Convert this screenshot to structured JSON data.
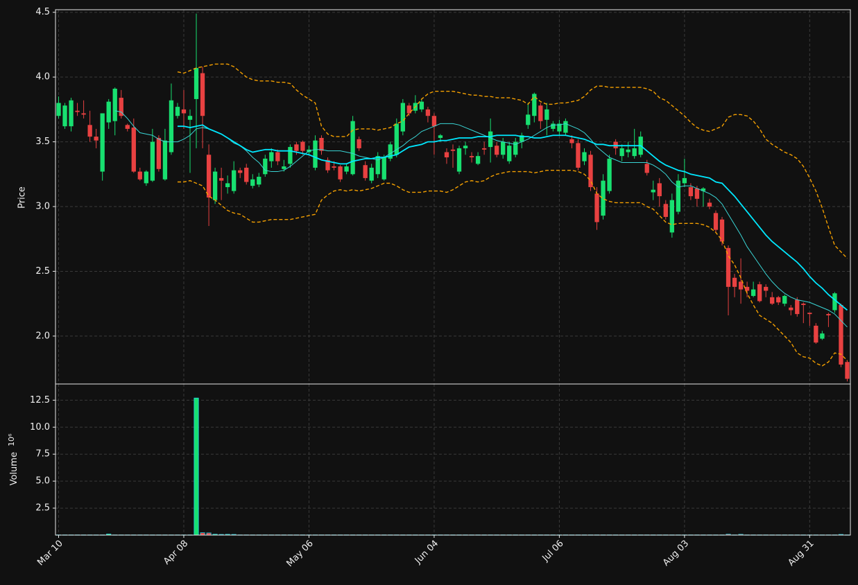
{
  "chart_data": {
    "type": "candlestick",
    "y_label": "Price",
    "volume_label": "Volume",
    "volume_scale_label": "10⁶",
    "up_color": "#18e070",
    "down_color": "#e84141",
    "volume_edge_color": "#22d3e6",
    "grid": true,
    "categories": [
      "Mar 10",
      null,
      null,
      null,
      null,
      null,
      null,
      null,
      null,
      null,
      null,
      null,
      null,
      null,
      null,
      null,
      null,
      null,
      null,
      null,
      "Apr 08",
      null,
      null,
      null,
      null,
      null,
      null,
      null,
      null,
      null,
      null,
      null,
      null,
      null,
      null,
      null,
      null,
      null,
      null,
      null,
      "May 06",
      null,
      null,
      null,
      null,
      null,
      null,
      null,
      null,
      null,
      null,
      null,
      null,
      null,
      null,
      null,
      null,
      null,
      null,
      null,
      "Jun 04",
      null,
      null,
      null,
      null,
      null,
      null,
      null,
      null,
      null,
      null,
      null,
      null,
      null,
      null,
      null,
      null,
      null,
      null,
      null,
      "Jul 06",
      null,
      null,
      null,
      null,
      null,
      null,
      null,
      null,
      null,
      null,
      null,
      null,
      null,
      null,
      null,
      null,
      null,
      null,
      null,
      "Aug 03",
      null,
      null,
      null,
      null,
      null,
      null,
      null,
      null,
      null,
      null,
      null,
      null,
      null,
      null,
      null,
      null,
      null,
      null,
      null,
      "Aug 31",
      null,
      null,
      null,
      null,
      null,
      null
    ],
    "open": [
      3.7,
      3.62,
      3.62,
      3.74,
      3.72,
      3.63,
      3.54,
      3.27,
      3.65,
      3.66,
      3.84,
      3.63,
      3.61,
      3.27,
      3.18,
      3.2,
      3.53,
      3.21,
      3.42,
      3.7,
      3.75,
      3.67,
      3.83,
      4.03,
      3.4,
      3.05,
      3.22,
      3.15,
      3.12,
      3.28,
      3.3,
      3.16,
      3.17,
      3.25,
      3.35,
      3.42,
      3.29,
      3.33,
      3.48,
      3.5,
      3.42,
      3.3,
      3.53,
      3.36,
      3.31,
      3.31,
      3.27,
      3.25,
      3.52,
      3.32,
      3.2,
      3.25,
      3.21,
      3.37,
      3.4,
      3.58,
      3.78,
      3.74,
      3.75,
      3.75,
      3.7,
      3.53,
      3.42,
      3.44,
      3.27,
      3.45,
      3.39,
      3.33,
      3.45,
      3.46,
      3.47,
      3.4,
      3.35,
      3.4,
      3.5,
      3.63,
      3.7,
      3.78,
      3.67,
      3.6,
      3.58,
      3.57,
      3.52,
      3.49,
      3.35,
      3.4,
      3.1,
      2.93,
      3.12,
      3.5,
      3.39,
      3.42,
      3.39,
      3.4,
      3.33,
      3.11,
      3.18,
      3.02,
      2.8,
      2.96,
      3.18,
      3.15,
      3.14,
      3.12,
      3.03,
      2.95,
      2.9,
      2.68,
      2.45,
      2.42,
      2.38,
      2.31,
      2.4,
      2.38,
      2.3,
      2.3,
      2.25,
      2.22,
      2.28,
      2.25,
      2.18,
      2.08,
      1.98,
      2.17,
      2.2,
      2.24,
      1.8
    ],
    "high": [
      3.85,
      3.8,
      3.84,
      3.8,
      3.82,
      3.74,
      3.6,
      3.72,
      3.83,
      3.92,
      3.9,
      3.64,
      3.68,
      3.3,
      3.28,
      3.6,
      3.55,
      3.6,
      3.95,
      3.8,
      3.9,
      3.75,
      4.49,
      4.08,
      3.48,
      3.3,
      3.3,
      3.24,
      3.35,
      3.3,
      3.33,
      3.25,
      3.26,
      3.4,
      3.45,
      3.44,
      3.36,
      3.48,
      3.5,
      3.51,
      3.47,
      3.55,
      3.55,
      3.38,
      3.35,
      3.32,
      3.33,
      3.7,
      3.54,
      3.35,
      3.33,
      3.42,
      3.4,
      3.5,
      3.68,
      3.83,
      3.8,
      3.86,
      3.83,
      3.77,
      3.72,
      3.56,
      3.45,
      3.48,
      3.47,
      3.5,
      3.42,
      3.42,
      3.5,
      3.68,
      3.5,
      3.53,
      3.5,
      3.53,
      3.57,
      3.8,
      3.88,
      3.8,
      3.8,
      3.66,
      3.67,
      3.68,
      3.55,
      3.52,
      3.45,
      3.43,
      3.15,
      3.25,
      3.4,
      3.52,
      3.48,
      3.5,
      3.6,
      3.58,
      3.36,
      3.2,
      3.22,
      3.05,
      3.1,
      3.25,
      3.37,
      3.18,
      3.16,
      3.15,
      3.06,
      2.97,
      2.92,
      2.7,
      2.48,
      2.6,
      2.42,
      2.42,
      2.42,
      2.4,
      2.34,
      2.31,
      2.32,
      2.24,
      2.3,
      2.26,
      2.18,
      2.1,
      2.04,
      2.18,
      2.34,
      2.25,
      1.81
    ],
    "low": [
      3.68,
      3.6,
      3.58,
      3.7,
      3.68,
      3.5,
      3.45,
      3.2,
      3.6,
      3.55,
      3.68,
      3.58,
      3.26,
      3.2,
      3.16,
      3.19,
      3.27,
      3.2,
      3.4,
      3.68,
      3.6,
      3.26,
      3.45,
      3.45,
      2.85,
      3.02,
      3.05,
      3.1,
      3.1,
      3.22,
      3.17,
      3.14,
      3.15,
      3.23,
      3.3,
      3.32,
      3.27,
      3.3,
      3.4,
      3.4,
      3.4,
      3.28,
      3.4,
      3.26,
      3.28,
      3.19,
      3.25,
      3.24,
      3.43,
      3.2,
      3.18,
      3.22,
      3.2,
      3.35,
      3.38,
      3.55,
      3.7,
      3.72,
      3.73,
      3.65,
      3.4,
      3.5,
      3.33,
      3.3,
      3.25,
      3.4,
      3.34,
      3.32,
      3.4,
      3.34,
      3.38,
      3.37,
      3.33,
      3.38,
      3.45,
      3.6,
      3.65,
      3.6,
      3.55,
      3.58,
      3.55,
      3.55,
      3.45,
      3.28,
      3.32,
      3.12,
      2.82,
      2.9,
      3.1,
      3.4,
      3.35,
      3.38,
      3.37,
      3.38,
      3.24,
      3.05,
      3.0,
      2.9,
      2.76,
      2.94,
      3.15,
      3.05,
      3.0,
      3.0,
      2.98,
      2.8,
      2.7,
      2.16,
      2.3,
      2.25,
      2.3,
      2.3,
      2.26,
      2.3,
      2.24,
      2.24,
      2.23,
      2.16,
      2.15,
      2.1,
      2.08,
      1.94,
      1.97,
      2.07,
      2.18,
      1.76,
      1.65
    ],
    "close": [
      3.8,
      3.78,
      3.82,
      3.73,
      3.71,
      3.54,
      3.51,
      3.72,
      3.81,
      3.91,
      3.7,
      3.6,
      3.27,
      3.21,
      3.27,
      3.5,
      3.29,
      3.51,
      3.82,
      3.77,
      3.72,
      3.7,
      4.07,
      3.7,
      3.07,
      3.27,
      3.2,
      3.18,
      3.28,
      3.26,
      3.19,
      3.21,
      3.23,
      3.37,
      3.42,
      3.35,
      3.31,
      3.46,
      3.43,
      3.43,
      3.44,
      3.51,
      3.43,
      3.28,
      3.3,
      3.21,
      3.31,
      3.66,
      3.45,
      3.22,
      3.3,
      3.39,
      3.38,
      3.48,
      3.64,
      3.8,
      3.72,
      3.8,
      3.81,
      3.7,
      3.62,
      3.55,
      3.38,
      3.43,
      3.45,
      3.47,
      3.38,
      3.39,
      3.44,
      3.58,
      3.4,
      3.5,
      3.47,
      3.5,
      3.55,
      3.71,
      3.87,
      3.66,
      3.75,
      3.64,
      3.64,
      3.66,
      3.49,
      3.3,
      3.42,
      3.15,
      2.88,
      3.2,
      3.37,
      3.45,
      3.45,
      3.44,
      3.45,
      3.54,
      3.26,
      3.13,
      3.08,
      2.92,
      3.05,
      3.2,
      3.22,
      3.08,
      3.06,
      3.14,
      3.0,
      2.82,
      2.73,
      2.38,
      2.38,
      2.36,
      2.35,
      2.36,
      2.27,
      2.35,
      2.25,
      2.26,
      2.31,
      2.2,
      2.17,
      2.24,
      2.17,
      1.95,
      2.02,
      2.16,
      2.33,
      1.78,
      1.67
    ],
    "volume": [
      0.02,
      0.02,
      0.02,
      0.02,
      0.02,
      0.02,
      0.02,
      0.02,
      0.1,
      0.02,
      0.02,
      0.02,
      0.02,
      0.02,
      0.02,
      0.02,
      0.02,
      0.02,
      0.02,
      0.02,
      0.02,
      0.02,
      12.7,
      0.22,
      0.2,
      0.08,
      0.06,
      0.07,
      0.06,
      0.02,
      0.02,
      0.02,
      0.02,
      0.02,
      0.02,
      0.02,
      0.02,
      0.02,
      0.02,
      0.02,
      0.02,
      0.02,
      0.02,
      0.02,
      0.02,
      0.02,
      0.02,
      0.02,
      0.02,
      0.02,
      0.02,
      0.02,
      0.02,
      0.02,
      0.02,
      0.02,
      0.02,
      0.02,
      0.02,
      0.02,
      0.02,
      0.02,
      0.02,
      0.02,
      0.02,
      0.02,
      0.02,
      0.02,
      0.02,
      0.02,
      0.02,
      0.02,
      0.02,
      0.02,
      0.02,
      0.02,
      0.02,
      0.02,
      0.02,
      0.02,
      0.02,
      0.02,
      0.02,
      0.02,
      0.02,
      0.02,
      0.02,
      0.02,
      0.02,
      0.02,
      0.02,
      0.02,
      0.02,
      0.02,
      0.02,
      0.02,
      0.02,
      0.02,
      0.02,
      0.02,
      0.02,
      0.02,
      0.02,
      0.02,
      0.02,
      0.02,
      0.02,
      0.08,
      0.02,
      0.07,
      0.02,
      0.02,
      0.02,
      0.02,
      0.02,
      0.02,
      0.02,
      0.02,
      0.02,
      0.02,
      0.02,
      0.02,
      0.02,
      0.02,
      0.02,
      0.06,
      0.02
    ],
    "overlays": [
      {
        "color": "#3ad6d6",
        "width": 1,
        "dashed": false,
        "values": [
          null,
          null,
          null,
          null,
          null,
          null,
          null,
          null,
          null,
          3.74,
          3.73,
          3.68,
          3.62,
          3.57,
          3.56,
          3.55,
          3.52,
          3.5,
          3.5,
          3.5,
          3.52,
          3.55,
          3.6,
          3.61,
          3.6,
          3.58,
          3.56,
          3.53,
          3.49,
          3.47,
          3.43,
          3.38,
          3.34,
          3.28,
          3.27,
          3.27,
          3.28,
          3.31,
          3.35,
          3.39,
          3.43,
          3.44,
          3.44,
          3.43,
          3.43,
          3.43,
          3.42,
          3.41,
          3.39,
          3.38,
          3.37,
          3.36,
          3.38,
          3.41,
          3.44,
          3.47,
          3.51,
          3.54,
          3.58,
          3.6,
          3.62,
          3.64,
          3.64,
          3.64,
          3.63,
          3.61,
          3.59,
          3.57,
          3.55,
          3.53,
          3.51,
          3.5,
          3.49,
          3.48,
          3.5,
          3.52,
          3.55,
          3.58,
          3.61,
          3.63,
          3.63,
          3.64,
          3.62,
          3.6,
          3.57,
          3.52,
          3.46,
          3.42,
          3.38,
          3.36,
          3.34,
          3.34,
          3.34,
          3.34,
          3.34,
          3.32,
          3.29,
          3.25,
          3.19,
          3.15,
          3.16,
          3.16,
          3.14,
          3.12,
          3.1,
          3.07,
          3.02,
          2.94,
          2.86,
          2.78,
          2.69,
          2.62,
          2.55,
          2.48,
          2.42,
          2.37,
          2.33,
          2.3,
          2.28,
          2.27,
          2.26,
          2.24,
          2.22,
          2.2,
          2.17,
          2.12,
          2.07
        ]
      },
      {
        "color": "#00e8ff",
        "width": 1.8,
        "dashed": false,
        "values": [
          null,
          null,
          null,
          null,
          null,
          null,
          null,
          null,
          null,
          null,
          null,
          null,
          null,
          null,
          null,
          null,
          null,
          null,
          null,
          3.62,
          3.62,
          3.61,
          3.62,
          3.63,
          3.6,
          3.58,
          3.56,
          3.53,
          3.5,
          3.47,
          3.44,
          3.42,
          3.43,
          3.44,
          3.44,
          3.43,
          3.43,
          3.43,
          3.42,
          3.41,
          3.4,
          3.38,
          3.36,
          3.35,
          3.34,
          3.33,
          3.33,
          3.35,
          3.36,
          3.37,
          3.37,
          3.38,
          3.38,
          3.39,
          3.4,
          3.43,
          3.46,
          3.47,
          3.48,
          3.5,
          3.5,
          3.51,
          3.51,
          3.52,
          3.53,
          3.53,
          3.53,
          3.54,
          3.54,
          3.54,
          3.55,
          3.55,
          3.55,
          3.55,
          3.54,
          3.54,
          3.53,
          3.53,
          3.54,
          3.55,
          3.55,
          3.55,
          3.54,
          3.53,
          3.52,
          3.5,
          3.48,
          3.48,
          3.47,
          3.47,
          3.47,
          3.47,
          3.47,
          3.47,
          3.43,
          3.39,
          3.35,
          3.32,
          3.3,
          3.28,
          3.27,
          3.25,
          3.24,
          3.23,
          3.22,
          3.19,
          3.18,
          3.13,
          3.08,
          3.02,
          2.96,
          2.9,
          2.84,
          2.78,
          2.73,
          2.69,
          2.65,
          2.61,
          2.57,
          2.52,
          2.46,
          2.41,
          2.37,
          2.32,
          2.28,
          2.24,
          2.2
        ]
      },
      {
        "color": "#f5a000",
        "width": 1.4,
        "dashed": true,
        "values": [
          null,
          null,
          null,
          null,
          null,
          null,
          null,
          null,
          null,
          null,
          null,
          null,
          null,
          null,
          null,
          null,
          null,
          null,
          null,
          4.04,
          4.03,
          4.05,
          4.07,
          4.08,
          4.09,
          4.1,
          4.1,
          4.1,
          4.08,
          4.04,
          4.0,
          3.98,
          3.97,
          3.97,
          3.97,
          3.96,
          3.96,
          3.95,
          3.9,
          3.86,
          3.83,
          3.8,
          3.62,
          3.56,
          3.54,
          3.54,
          3.54,
          3.59,
          3.6,
          3.6,
          3.6,
          3.59,
          3.6,
          3.61,
          3.64,
          3.66,
          3.72,
          3.77,
          3.83,
          3.87,
          3.89,
          3.89,
          3.89,
          3.89,
          3.88,
          3.87,
          3.86,
          3.86,
          3.85,
          3.85,
          3.84,
          3.84,
          3.84,
          3.83,
          3.82,
          3.79,
          3.85,
          3.81,
          3.79,
          3.79,
          3.8,
          3.8,
          3.81,
          3.82,
          3.85,
          3.9,
          3.93,
          3.93,
          3.92,
          3.92,
          3.92,
          3.92,
          3.92,
          3.92,
          3.91,
          3.89,
          3.84,
          3.82,
          3.78,
          3.74,
          3.7,
          3.65,
          3.61,
          3.59,
          3.58,
          3.6,
          3.62,
          3.69,
          3.71,
          3.71,
          3.7,
          3.66,
          3.6,
          3.52,
          3.48,
          3.45,
          3.42,
          3.4,
          3.37,
          3.31,
          3.22,
          3.12,
          2.99,
          2.84,
          2.7,
          2.65,
          2.6
        ]
      },
      {
        "color": "#f5a000",
        "width": 1.4,
        "dashed": true,
        "values": [
          null,
          null,
          null,
          null,
          null,
          null,
          null,
          null,
          null,
          null,
          null,
          null,
          null,
          null,
          null,
          null,
          null,
          null,
          null,
          3.19,
          3.19,
          3.2,
          3.18,
          3.16,
          3.08,
          3.05,
          3.01,
          2.97,
          2.95,
          2.94,
          2.91,
          2.88,
          2.88,
          2.89,
          2.9,
          2.9,
          2.9,
          2.9,
          2.91,
          2.92,
          2.93,
          2.94,
          3.05,
          3.09,
          3.12,
          3.13,
          3.12,
          3.13,
          3.12,
          3.13,
          3.14,
          3.16,
          3.18,
          3.18,
          3.16,
          3.13,
          3.11,
          3.11,
          3.11,
          3.12,
          3.12,
          3.12,
          3.11,
          3.13,
          3.16,
          3.19,
          3.2,
          3.19,
          3.2,
          3.23,
          3.25,
          3.26,
          3.27,
          3.27,
          3.27,
          3.27,
          3.26,
          3.27,
          3.28,
          3.28,
          3.28,
          3.28,
          3.28,
          3.27,
          3.25,
          3.2,
          3.1,
          3.06,
          3.04,
          3.03,
          3.03,
          3.03,
          3.03,
          3.03,
          3.0,
          2.98,
          2.93,
          2.88,
          2.86,
          2.87,
          2.87,
          2.87,
          2.87,
          2.86,
          2.84,
          2.8,
          2.74,
          2.62,
          2.55,
          2.45,
          2.33,
          2.24,
          2.16,
          2.13,
          2.1,
          2.05,
          2.0,
          1.95,
          1.87,
          1.84,
          1.83,
          1.79,
          1.77,
          1.8,
          1.87,
          1.86,
          1.81
        ]
      }
    ],
    "ylim": [
      1.63,
      4.52
    ],
    "yticks": [
      {
        "value": 2,
        "label": "2.0"
      },
      2.5,
      {
        "value": 3,
        "label": "3.0"
      },
      3.5,
      {
        "value": 4,
        "label": "4.0"
      },
      4.5
    ],
    "volume_ylim": [
      0,
      14
    ],
    "volume_yticks": [
      2.5,
      {
        "value": 5,
        "label": "5.0"
      },
      7.5,
      {
        "value": 10,
        "label": "10.0"
      },
      12.5
    ]
  }
}
